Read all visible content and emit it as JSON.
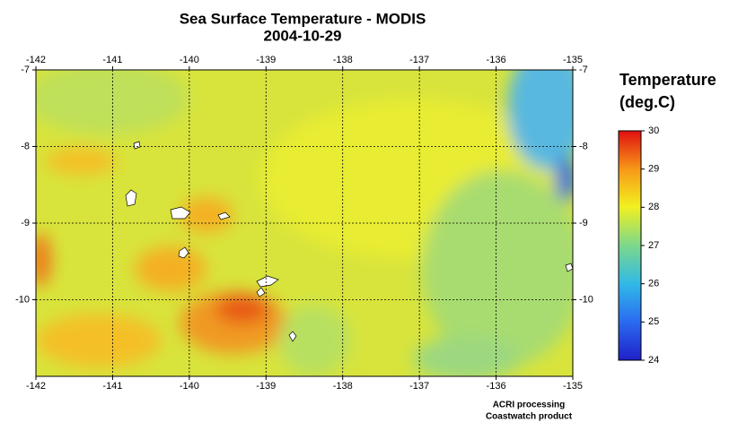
{
  "title": "Sea Surface Temperature - MODIS",
  "subtitle": "2004-10-29",
  "map": {
    "xlim": [
      -142,
      -135
    ],
    "ylim": [
      -11,
      -7
    ],
    "xticks": [
      -142,
      -141,
      -140,
      -139,
      -138,
      -137,
      -136,
      -135
    ],
    "yticks": [
      -10,
      -9,
      -8,
      -7
    ]
  },
  "colorbar": {
    "title": "Temperature",
    "units": "(deg.C)",
    "lim": [
      24,
      30
    ],
    "ticks": [
      24,
      25,
      26,
      27,
      28,
      29,
      30
    ]
  },
  "credits": [
    "ACRI processing",
    "Coastwatch product"
  ]
}
